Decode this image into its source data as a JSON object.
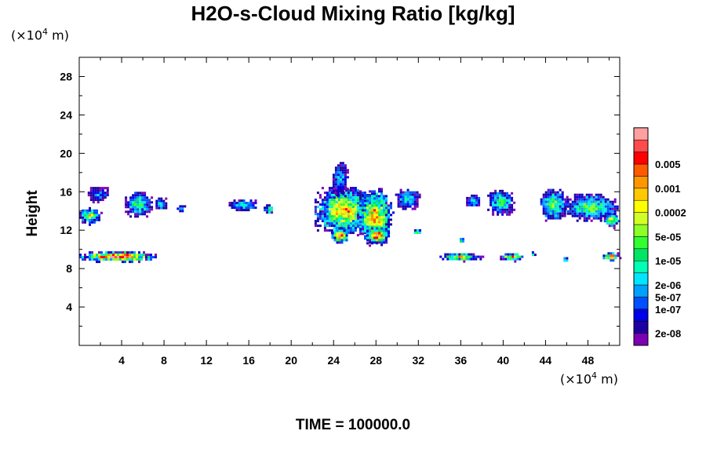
{
  "chart_data": {
    "type": "heatmap",
    "title": "H2O-s-Cloud Mixing Ratio [kg/kg]",
    "ylabel": "Height",
    "xunit": {
      "prefix": "(×10",
      "exp": "4",
      "suffix": " m)"
    },
    "yunit": {
      "prefix": "(×10",
      "exp": "4",
      "suffix": " m)"
    },
    "xlim": [
      0,
      51
    ],
    "ylim": [
      0,
      30
    ],
    "xticks": [
      4,
      8,
      12,
      16,
      20,
      24,
      28,
      32,
      36,
      40,
      44,
      48
    ],
    "yticks": [
      4,
      8,
      12,
      16,
      20,
      24,
      28
    ],
    "grid": false,
    "legend": {
      "placement": "right",
      "colors": [
        "#7b00b4",
        "#1e00a0",
        "#0000e6",
        "#0050ff",
        "#00a0ff",
        "#00e6ff",
        "#00ffb4",
        "#00e664",
        "#32ff32",
        "#8cff28",
        "#d2ff28",
        "#ffff00",
        "#ffc800",
        "#ff9600",
        "#ff5a00",
        "#ff0000",
        "#ff4b4b",
        "#ffa0a0"
      ],
      "labels": [
        {
          "at": 1,
          "text": "2e-08"
        },
        {
          "at": 3,
          "text": "1e-07"
        },
        {
          "at": 4,
          "text": "5e-07"
        },
        {
          "at": 5,
          "text": "2e-06"
        },
        {
          "at": 7,
          "text": "1e-05"
        },
        {
          "at": 9,
          "text": "5e-05"
        },
        {
          "at": 11,
          "text": "0.0002"
        },
        {
          "at": 13,
          "text": "0.001"
        },
        {
          "at": 15,
          "text": "0.005"
        }
      ]
    },
    "clouds": [
      {
        "x": [
          0.0,
          2.0
        ],
        "y": [
          12.6,
          14.4
        ],
        "peak": 0.55
      },
      {
        "x": [
          0.8,
          2.9
        ],
        "y": [
          14.9,
          16.5
        ],
        "peak": 0.2
      },
      {
        "x": [
          4.3,
          6.9
        ],
        "y": [
          13.4,
          16.0
        ],
        "peak": 0.4
      },
      {
        "x": [
          7.2,
          8.3
        ],
        "y": [
          14.0,
          15.4
        ],
        "peak": 0.3
      },
      {
        "x": [
          9.2,
          10.0
        ],
        "y": [
          13.9,
          14.6
        ],
        "peak": 0.3
      },
      {
        "x": [
          14.1,
          16.9
        ],
        "y": [
          14.0,
          15.2
        ],
        "peak": 0.35
      },
      {
        "x": [
          17.4,
          18.4
        ],
        "y": [
          13.6,
          14.7
        ],
        "peak": 0.4
      },
      {
        "x": [
          22.2,
          28.0
        ],
        "y": [
          11.5,
          16.5
        ],
        "peak": 0.65
      },
      {
        "x": [
          23.9,
          25.4
        ],
        "y": [
          15.5,
          19.1
        ],
        "peak": 0.25
      },
      {
        "x": [
          26.2,
          29.6
        ],
        "y": [
          10.5,
          16.4
        ],
        "peak": 0.7
      },
      {
        "x": [
          23.8,
          25.4
        ],
        "y": [
          10.7,
          12.3
        ],
        "peak": 0.85
      },
      {
        "x": [
          27.1,
          29.2
        ],
        "y": [
          10.5,
          12.3
        ],
        "peak": 0.85
      },
      {
        "x": [
          29.8,
          32.2
        ],
        "y": [
          14.2,
          16.3
        ],
        "peak": 0.3
      },
      {
        "x": [
          31.6,
          32.3
        ],
        "y": [
          11.5,
          12.1
        ],
        "peak": 0.55
      },
      {
        "x": [
          36.5,
          37.9
        ],
        "y": [
          14.3,
          15.7
        ],
        "peak": 0.3
      },
      {
        "x": [
          38.5,
          41.1
        ],
        "y": [
          13.6,
          16.2
        ],
        "peak": 0.4
      },
      {
        "x": [
          43.5,
          46.0
        ],
        "y": [
          13.0,
          16.3
        ],
        "peak": 0.45
      },
      {
        "x": [
          45.8,
          50.8
        ],
        "y": [
          13.0,
          15.8
        ],
        "peak": 0.45
      },
      {
        "x": [
          49.5,
          51.0
        ],
        "y": [
          12.3,
          13.8
        ],
        "peak": 0.55
      },
      {
        "x": [
          0.0,
          7.3
        ],
        "y": [
          8.7,
          9.8
        ],
        "peak": 0.9
      },
      {
        "x": [
          34.0,
          38.1
        ],
        "y": [
          8.8,
          9.6
        ],
        "peak": 0.6
      },
      {
        "x": [
          39.7,
          42.0
        ],
        "y": [
          8.8,
          9.6
        ],
        "peak": 0.7
      },
      {
        "x": [
          49.4,
          51.0
        ],
        "y": [
          8.8,
          9.7
        ],
        "peak": 0.75
      },
      {
        "x": [
          35.9,
          36.3
        ],
        "y": [
          10.7,
          11.2
        ],
        "peak": 0.6
      },
      {
        "x": [
          42.7,
          43.1
        ],
        "y": [
          9.3,
          9.8
        ],
        "peak": 0.6
      },
      {
        "x": [
          45.7,
          46.1
        ],
        "y": [
          8.7,
          9.2
        ],
        "peak": 0.6
      }
    ]
  },
  "time_label": "TIME = 100000.0"
}
